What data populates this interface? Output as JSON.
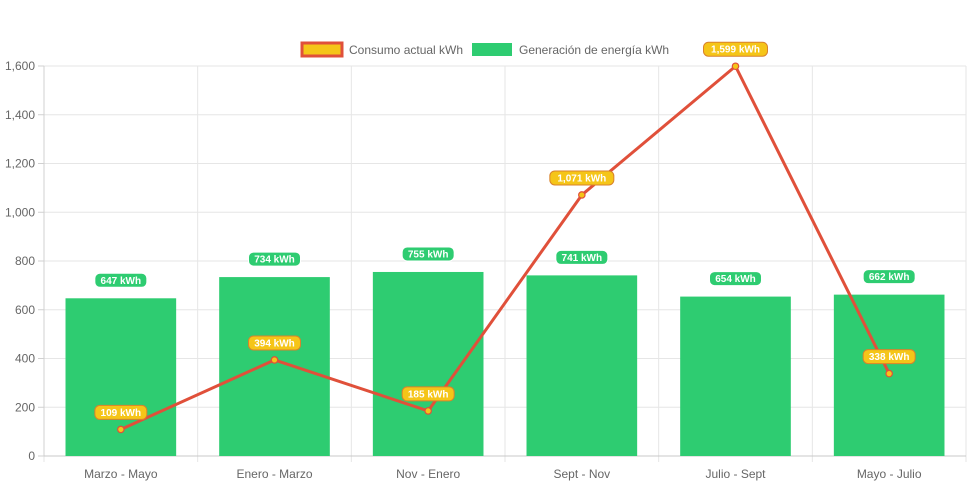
{
  "chart_data": {
    "type": "bar",
    "categories": [
      "Marzo - Mayo",
      "Enero - Marzo",
      "Nov - Enero",
      "Sept - Nov",
      "Julio - Sept",
      "Mayo - Julio"
    ],
    "series": [
      {
        "name": "Consumo actual kWh",
        "type": "line",
        "values": [
          109,
          394,
          185,
          1071,
          1599,
          338
        ],
        "labels": [
          "109 kWh",
          "394 kWh",
          "185 kWh",
          "1,071 kWh",
          "1,599 kWh",
          "338 kWh"
        ],
        "color": "#e0503a",
        "fill": "#f5c518"
      },
      {
        "name": "Generación de energía kWh",
        "type": "bar",
        "values": [
          647,
          734,
          755,
          741,
          654,
          662
        ],
        "labels": [
          "647 kWh",
          "734 kWh",
          "755 kWh",
          "741 kWh",
          "654 kWh",
          "662 kWh"
        ],
        "color": "#2ecc71"
      }
    ],
    "yticks": [
      "0",
      "200",
      "400",
      "600",
      "800",
      "1,000",
      "1,200",
      "1,400",
      "1,600"
    ],
    "ylim": [
      0,
      1600
    ],
    "grid": true,
    "legend": "top-center"
  }
}
